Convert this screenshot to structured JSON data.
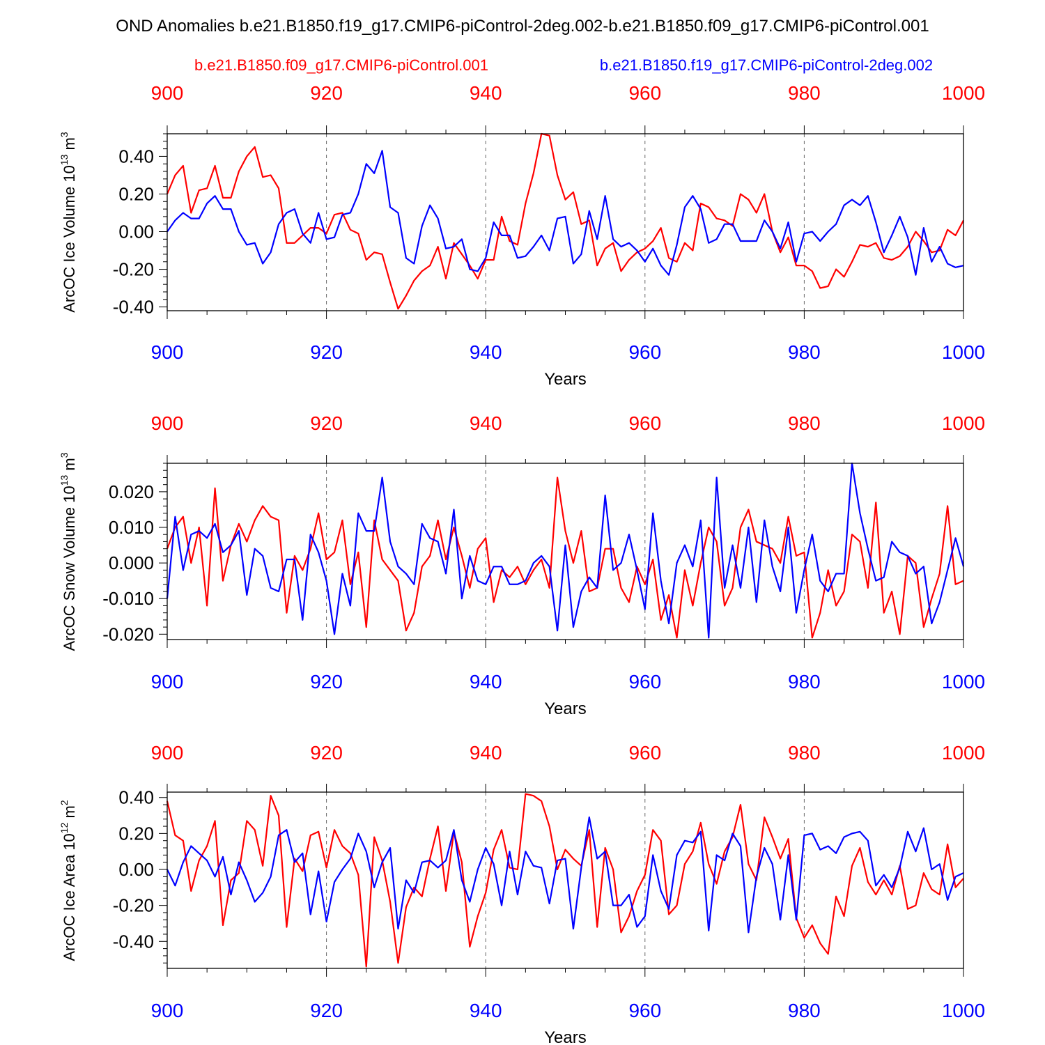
{
  "title": "OND Anomalies b.e21.B1850.f19_g17.CMIP6-piControl-2deg.002-b.e21.B1850.f09_g17.CMIP6-piControl.001",
  "legend": {
    "red": "b.e21.B1850.f09_g17.CMIP6-piControl.001",
    "blue": "b.e21.B1850.f19_g17.CMIP6-piControl-2deg.002"
  },
  "colors": {
    "red": "#ff0000",
    "blue": "#0000ff"
  },
  "chart_data": [
    {
      "type": "line",
      "ylabel": "ArcOC Ice Volume 10",
      "ylabel_exp": "13",
      "ylabel_unit": " m",
      "ylabel_unit_exp": "3",
      "xlabel": "Years",
      "xlim": [
        900,
        1000
      ],
      "ylim": [
        -0.42,
        0.52
      ],
      "yticks": [
        -0.4,
        -0.2,
        0.0,
        0.2,
        0.4
      ],
      "ytick_labels": [
        "-0.40",
        "-0.20",
        "0.00",
        "0.20",
        "0.40"
      ],
      "xticks": [
        900,
        920,
        940,
        960,
        980,
        1000
      ],
      "xtick_labels": [
        "900",
        "920",
        "940",
        "960",
        "980",
        "1000"
      ],
      "x_start": 900,
      "series": [
        {
          "name": "b.e21.B1850.f09_g17.CMIP6-piControl.001",
          "color": "#ff0000",
          "values": [
            0.2,
            0.3,
            0.35,
            0.1,
            0.22,
            0.23,
            0.35,
            0.18,
            0.18,
            0.32,
            0.4,
            0.45,
            0.29,
            0.3,
            0.23,
            -0.06,
            -0.06,
            -0.02,
            0.02,
            0.02,
            -0.01,
            0.09,
            0.1,
            0.01,
            -0.01,
            -0.15,
            -0.11,
            -0.12,
            -0.27,
            -0.41,
            -0.34,
            -0.26,
            -0.21,
            -0.18,
            -0.08,
            -0.25,
            -0.06,
            -0.12,
            -0.18,
            -0.25,
            -0.15,
            -0.15,
            0.08,
            -0.05,
            -0.07,
            0.15,
            0.31,
            0.52,
            0.51,
            0.3,
            0.17,
            0.21,
            0.04,
            0.06,
            -0.18,
            -0.09,
            -0.06,
            -0.21,
            -0.15,
            -0.11,
            -0.09,
            -0.05,
            0.02,
            -0.14,
            -0.16,
            -0.06,
            -0.1,
            0.15,
            0.13,
            0.07,
            0.06,
            0.03,
            0.2,
            0.17,
            0.1,
            0.2,
            0.0,
            -0.11,
            -0.03,
            -0.18,
            -0.18,
            -0.21,
            -0.3,
            -0.29,
            -0.2,
            -0.24,
            -0.16,
            -0.07,
            -0.08,
            -0.06,
            -0.14,
            -0.15,
            -0.13,
            -0.08,
            0.0,
            -0.05,
            -0.11,
            -0.1,
            0.01,
            -0.02,
            0.06
          ]
        },
        {
          "name": "b.e21.B1850.f19_g17.CMIP6-piControl-2deg.002",
          "color": "#0000ff",
          "values": [
            0.0,
            0.06,
            0.1,
            0.07,
            0.07,
            0.15,
            0.19,
            0.12,
            0.12,
            0.0,
            -0.07,
            -0.06,
            -0.17,
            -0.11,
            0.04,
            0.1,
            0.12,
            -0.01,
            -0.06,
            0.1,
            -0.04,
            -0.03,
            0.09,
            0.1,
            0.2,
            0.36,
            0.31,
            0.43,
            0.13,
            0.1,
            -0.14,
            -0.17,
            0.03,
            0.14,
            0.07,
            -0.09,
            -0.08,
            -0.04,
            -0.2,
            -0.21,
            -0.14,
            0.05,
            -0.02,
            -0.02,
            -0.14,
            -0.13,
            -0.08,
            -0.02,
            -0.1,
            0.07,
            0.08,
            -0.17,
            -0.12,
            0.11,
            -0.04,
            0.19,
            -0.04,
            -0.08,
            -0.06,
            -0.1,
            -0.16,
            -0.09,
            -0.18,
            -0.23,
            -0.07,
            0.13,
            0.19,
            0.12,
            -0.06,
            -0.04,
            0.04,
            0.04,
            -0.05,
            -0.05,
            -0.05,
            0.06,
            0.0,
            -0.09,
            0.05,
            -0.16,
            -0.01,
            0.0,
            -0.05,
            0.0,
            0.04,
            0.14,
            0.17,
            0.14,
            0.19,
            0.05,
            -0.11,
            -0.02,
            0.08,
            -0.03,
            -0.23,
            0.02,
            -0.16,
            -0.08,
            -0.17,
            -0.19,
            -0.18
          ]
        }
      ]
    },
    {
      "type": "line",
      "ylabel": "ArcOC Snow Volume 10",
      "ylabel_exp": "13",
      "ylabel_unit": " m",
      "ylabel_unit_exp": "3",
      "xlabel": "Years",
      "xlim": [
        900,
        1000
      ],
      "ylim": [
        -0.0215,
        0.028
      ],
      "yticks": [
        -0.02,
        -0.01,
        0.0,
        0.01,
        0.02
      ],
      "ytick_labels": [
        "-0.020",
        "-0.010",
        "0.000",
        "0.010",
        "0.020"
      ],
      "xticks": [
        900,
        920,
        940,
        960,
        980,
        1000
      ],
      "xtick_labels": [
        "900",
        "920",
        "940",
        "960",
        "980",
        "1000"
      ],
      "x_start": 900,
      "series": [
        {
          "name": "b.e21.B1850.f09_g17.CMIP6-piControl.001",
          "color": "#ff0000",
          "values": [
            0.004,
            0.01,
            0.013,
            0.0,
            0.01,
            -0.012,
            0.021,
            -0.005,
            0.005,
            0.011,
            0.006,
            0.012,
            0.016,
            0.013,
            0.012,
            -0.014,
            0.002,
            -0.002,
            0.004,
            0.014,
            0.001,
            0.003,
            0.012,
            -0.006,
            0.003,
            -0.018,
            0.012,
            0.001,
            -0.002,
            -0.005,
            -0.019,
            -0.014,
            -0.001,
            0.002,
            0.012,
            0.001,
            0.01,
            0.002,
            -0.007,
            0.004,
            0.007,
            -0.011,
            -0.002,
            -0.004,
            -0.001,
            -0.006,
            -0.002,
            0.001,
            -0.007,
            0.024,
            0.009,
            0.0,
            0.009,
            -0.008,
            -0.007,
            0.004,
            0.004,
            -0.007,
            -0.011,
            -0.001,
            -0.006,
            0.001,
            -0.016,
            -0.009,
            -0.021,
            -0.002,
            -0.012,
            0.0,
            0.01,
            0.006,
            -0.012,
            -0.007,
            0.01,
            0.015,
            0.006,
            0.005,
            0.004,
            0.0,
            0.013,
            0.002,
            0.003,
            -0.021,
            -0.014,
            -0.002,
            -0.012,
            -0.008,
            0.008,
            0.006,
            -0.007,
            0.017,
            -0.014,
            -0.008,
            -0.02,
            0.002,
            0.0,
            -0.018,
            -0.01,
            -0.003,
            0.016,
            -0.006,
            -0.005
          ]
        },
        {
          "name": "b.e21.B1850.f19_g17.CMIP6-piControl-2deg.002",
          "color": "#0000ff",
          "values": [
            -0.01,
            0.013,
            -0.002,
            0.008,
            0.009,
            0.007,
            0.011,
            0.003,
            0.005,
            0.009,
            -0.009,
            0.004,
            0.002,
            -0.007,
            -0.008,
            0.001,
            0.001,
            -0.016,
            0.008,
            0.003,
            -0.005,
            -0.02,
            -0.003,
            -0.012,
            0.014,
            0.009,
            0.009,
            0.024,
            0.006,
            -0.001,
            -0.003,
            -0.006,
            0.011,
            0.007,
            0.006,
            -0.003,
            0.015,
            -0.01,
            0.002,
            -0.005,
            -0.006,
            -0.001,
            -0.001,
            -0.006,
            -0.006,
            -0.005,
            0.0,
            0.002,
            -0.001,
            -0.019,
            0.005,
            -0.018,
            -0.008,
            -0.004,
            -0.007,
            0.019,
            -0.002,
            0.0,
            0.008,
            -0.002,
            -0.013,
            0.014,
            -0.005,
            -0.017,
            0.0,
            0.005,
            -0.001,
            0.012,
            -0.021,
            0.024,
            -0.007,
            0.005,
            -0.007,
            0.01,
            -0.011,
            0.012,
            -0.001,
            -0.008,
            0.01,
            -0.014,
            -0.002,
            0.008,
            -0.005,
            -0.008,
            -0.003,
            -0.003,
            0.028,
            0.014,
            0.004,
            -0.005,
            -0.004,
            0.006,
            0.003,
            0.002,
            -0.003,
            -0.001,
            -0.017,
            -0.011,
            -0.002,
            0.007,
            -0.001
          ]
        }
      ]
    },
    {
      "type": "line",
      "ylabel": "ArcOC Ice Area 10",
      "ylabel_exp": "12",
      "ylabel_unit": " m",
      "ylabel_unit_exp": "2",
      "xlabel": "Years",
      "xlim": [
        900,
        1000
      ],
      "ylim": [
        -0.55,
        0.43
      ],
      "yticks": [
        -0.4,
        -0.2,
        0.0,
        0.2,
        0.4
      ],
      "ytick_labels": [
        "-0.40",
        "-0.20",
        "0.00",
        "0.20",
        "0.40"
      ],
      "xticks": [
        900,
        920,
        940,
        960,
        980,
        1000
      ],
      "xtick_labels": [
        "900",
        "920",
        "940",
        "960",
        "980",
        "1000"
      ],
      "x_start": 900,
      "series": [
        {
          "name": "b.e21.B1850.f09_g17.CMIP6-piControl.001",
          "color": "#ff0000",
          "values": [
            0.38,
            0.19,
            0.16,
            -0.12,
            0.05,
            0.13,
            0.27,
            -0.31,
            -0.06,
            -0.02,
            0.27,
            0.22,
            0.02,
            0.41,
            0.3,
            -0.32,
            0.06,
            -0.01,
            0.19,
            0.21,
            0.01,
            0.22,
            0.13,
            0.09,
            -0.03,
            -0.54,
            0.18,
            0.05,
            -0.18,
            -0.52,
            -0.21,
            -0.1,
            -0.15,
            0.06,
            0.24,
            -0.12,
            0.21,
            0.04,
            -0.43,
            -0.26,
            -0.13,
            0.11,
            0.22,
            0.01,
            0.0,
            0.42,
            0.41,
            0.38,
            0.24,
            0.0,
            0.11,
            0.06,
            0.02,
            0.22,
            -0.32,
            0.12,
            0.0,
            -0.35,
            -0.26,
            -0.12,
            -0.03,
            0.22,
            0.16,
            -0.25,
            -0.2,
            0.03,
            0.1,
            0.26,
            0.03,
            -0.08,
            0.1,
            0.18,
            0.36,
            0.03,
            -0.06,
            0.29,
            0.18,
            0.06,
            0.17,
            -0.27,
            -0.38,
            -0.31,
            -0.41,
            -0.47,
            -0.15,
            -0.26,
            0.02,
            0.12,
            -0.07,
            -0.14,
            -0.06,
            -0.14,
            0.02,
            -0.22,
            -0.2,
            -0.02,
            -0.11,
            -0.14,
            0.14,
            -0.1,
            -0.05
          ]
        },
        {
          "name": "b.e21.B1850.f19_g17.CMIP6-piControl-2deg.002",
          "color": "#0000ff",
          "values": [
            0.0,
            -0.09,
            0.04,
            0.13,
            0.09,
            0.05,
            -0.04,
            0.07,
            -0.14,
            0.04,
            -0.06,
            -0.18,
            -0.13,
            -0.04,
            0.19,
            0.22,
            0.04,
            0.09,
            -0.25,
            -0.01,
            -0.29,
            -0.07,
            0.0,
            0.06,
            0.2,
            0.1,
            -0.1,
            0.04,
            0.12,
            -0.33,
            -0.06,
            -0.13,
            0.04,
            0.05,
            0.01,
            0.05,
            0.22,
            -0.06,
            -0.18,
            0.0,
            0.12,
            0.03,
            -0.2,
            0.1,
            -0.14,
            0.1,
            0.02,
            0.01,
            -0.19,
            0.05,
            0.06,
            -0.33,
            0.01,
            0.29,
            0.06,
            0.1,
            -0.2,
            -0.2,
            -0.14,
            -0.32,
            -0.26,
            0.08,
            -0.12,
            -0.22,
            0.08,
            0.16,
            0.15,
            0.21,
            -0.34,
            0.08,
            0.05,
            0.2,
            0.13,
            -0.35,
            -0.04,
            0.12,
            0.03,
            -0.28,
            0.08,
            -0.28,
            0.19,
            0.2,
            0.11,
            0.13,
            0.09,
            0.18,
            0.2,
            0.21,
            0.16,
            -0.09,
            -0.03,
            -0.1,
            0.01,
            0.21,
            0.1,
            0.23,
            0.0,
            0.03,
            -0.17,
            -0.04,
            -0.02
          ]
        }
      ]
    }
  ]
}
